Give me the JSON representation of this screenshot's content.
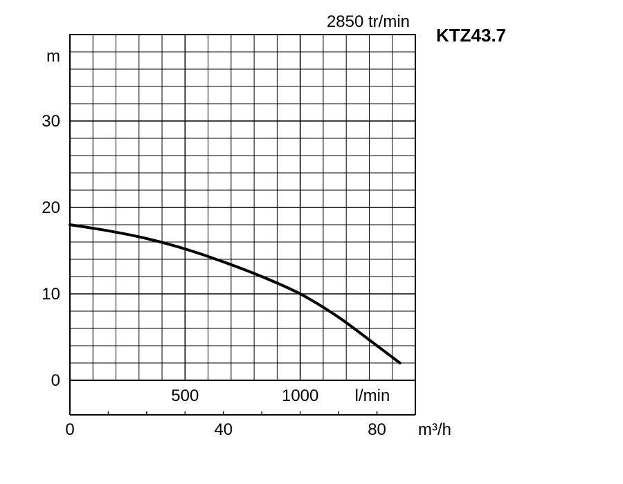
{
  "chart_data": {
    "type": "line",
    "title": "KTZ43.7",
    "subtitle": "2850 tr/min",
    "ylabel": "m",
    "xlabel_lmin": "l/min",
    "xlabel_m3h": "m³/h",
    "ylim": [
      0,
      40
    ],
    "x_m3h_lim": [
      0,
      90
    ],
    "y_ticks": [
      {
        "value": 0,
        "label": "0"
      },
      {
        "value": 10,
        "label": "10"
      },
      {
        "value": 20,
        "label": "20"
      },
      {
        "value": 30,
        "label": "30"
      }
    ],
    "x_lmin_ticks": [
      {
        "value": 500,
        "label": "500"
      },
      {
        "value": 1000,
        "label": "1000"
      }
    ],
    "x_m3h_ticks": [
      {
        "value": 0,
        "label": "0"
      },
      {
        "value": 40,
        "label": "40"
      },
      {
        "value": 80,
        "label": "80"
      }
    ],
    "grid": true,
    "series": [
      {
        "x": [
          0,
          10,
          20,
          30,
          40,
          50,
          60,
          70,
          80,
          86
        ],
        "y": [
          18,
          17.3,
          16.4,
          15.2,
          13.7,
          12,
          10,
          7.3,
          4,
          2
        ]
      }
    ]
  },
  "colors": {
    "line": "#000000",
    "grid": "#000000",
    "background": "#ffffff"
  }
}
